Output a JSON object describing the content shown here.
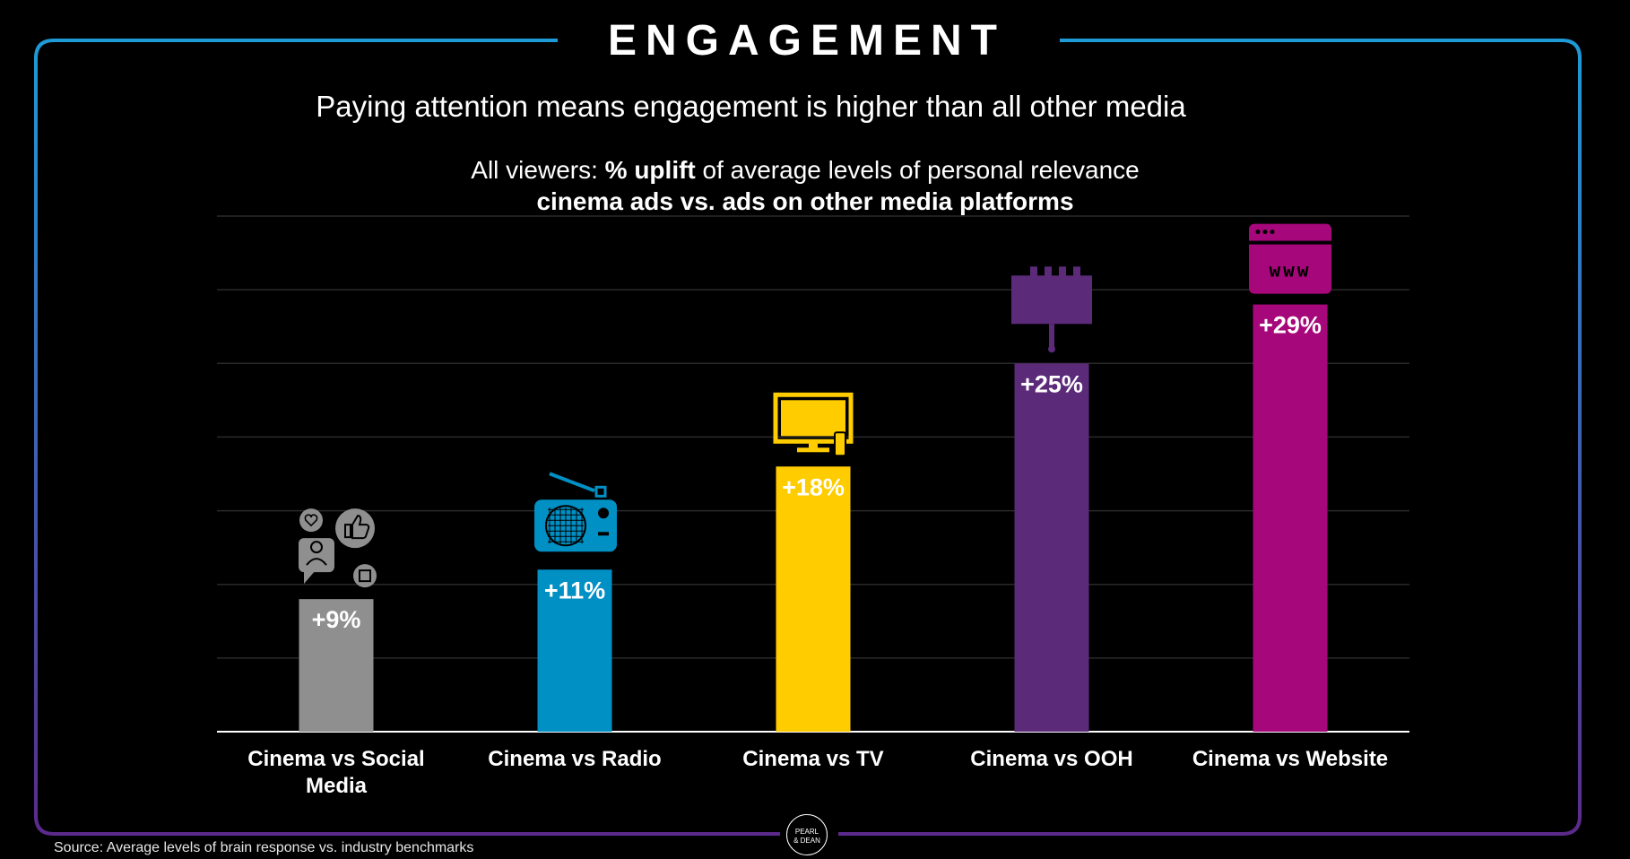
{
  "header": {
    "title": "ENGAGEMENT",
    "headline": "Paying attention means engagement is higher than all other media"
  },
  "chart_data": {
    "type": "bar",
    "subtitle_prefix": "All viewers: ",
    "subtitle_bold": "% uplift",
    "subtitle_suffix": " of average levels of personal relevance",
    "title": "cinema ads vs. ads on other media platforms",
    "categories": [
      "Cinema vs Social Media",
      "Cinema vs Radio",
      "Cinema vs TV",
      "Cinema vs OOH",
      "Cinema vs Website"
    ],
    "category_lines": [
      [
        "Cinema vs Social",
        "Media"
      ],
      [
        "Cinema vs Radio"
      ],
      [
        "Cinema vs TV"
      ],
      [
        "Cinema vs OOH"
      ],
      [
        "Cinema vs Website"
      ]
    ],
    "values": [
      9,
      11,
      18,
      25,
      29
    ],
    "value_labels": [
      "+9%",
      "+11%",
      "+18%",
      "+25%",
      "+29%"
    ],
    "colors": [
      "#8f8f8f",
      "#0090c4",
      "#ffcc00",
      "#5b2a79",
      "#a6077a"
    ],
    "icons": [
      "social-media-icon",
      "radio-icon",
      "tv-icon",
      "billboard-icon",
      "website-icon"
    ],
    "ylim": [
      0,
      35
    ],
    "grid": true,
    "xlabel": "",
    "ylabel": ""
  },
  "footer": {
    "source": "Source: Average levels of brain response vs. industry benchmarks",
    "logo_line1": "PEARL",
    "logo_line2": "& DEAN"
  },
  "colors": {
    "frame_top": "#1e9ad6",
    "frame_bottom": "#5b2a8c"
  }
}
